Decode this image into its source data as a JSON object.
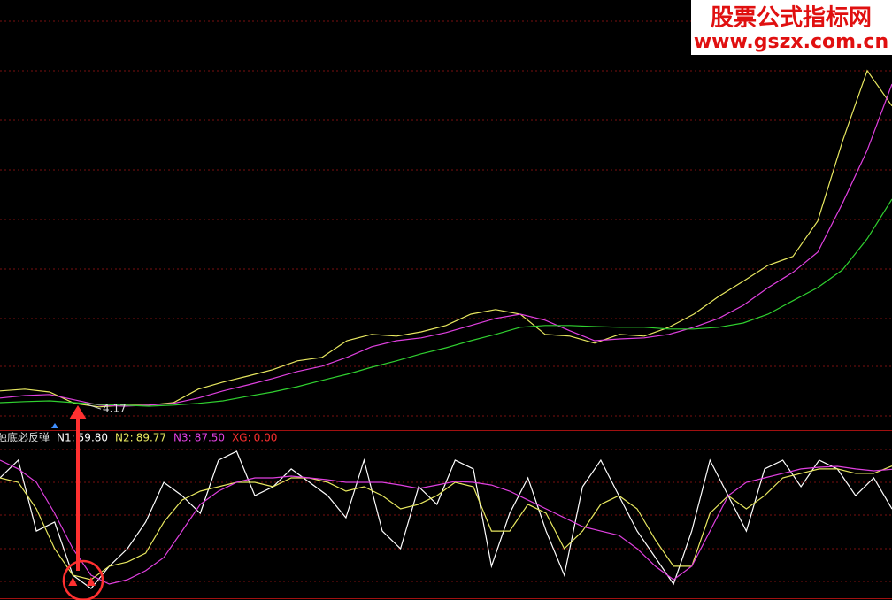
{
  "watermark": {
    "title": "股票公式指标网",
    "url": "www.gszx.com.cn"
  },
  "chart_data": [
    {
      "type": "line",
      "ylim": [
        3.6,
        15.725
      ],
      "low": 4.17,
      "series": [
        {
          "color": "#e8e860",
          "values": [
            4.68,
            4.73,
            4.65,
            4.33,
            4.23,
            4.28,
            4.28,
            4.35,
            4.73,
            4.93,
            5.1,
            5.28,
            5.53,
            5.63,
            6.1,
            6.28,
            6.23,
            6.35,
            6.53,
            6.85,
            6.98,
            6.85,
            6.28,
            6.23,
            6.03,
            6.28,
            6.23,
            6.48,
            6.85,
            7.35,
            7.78,
            8.23,
            8.48,
            9.48,
            11.73,
            13.73,
            12.73
          ]
        },
        {
          "color": "#e040e0",
          "values": [
            4.48,
            4.55,
            4.58,
            4.43,
            4.28,
            4.25,
            4.28,
            4.33,
            4.48,
            4.68,
            4.85,
            5.03,
            5.23,
            5.38,
            5.63,
            5.93,
            6.1,
            6.18,
            6.33,
            6.53,
            6.73,
            6.85,
            6.68,
            6.38,
            6.1,
            6.15,
            6.18,
            6.28,
            6.48,
            6.73,
            7.1,
            7.6,
            8.03,
            8.6,
            9.98,
            11.48,
            13.35
          ]
        },
        {
          "color": "#30d030",
          "values": [
            4.35,
            4.38,
            4.4,
            4.35,
            4.3,
            4.28,
            4.25,
            4.28,
            4.33,
            4.4,
            4.53,
            4.65,
            4.8,
            4.98,
            5.15,
            5.35,
            5.53,
            5.73,
            5.9,
            6.1,
            6.28,
            6.48,
            6.53,
            6.53,
            6.5,
            6.48,
            6.48,
            6.43,
            6.43,
            6.48,
            6.6,
            6.85,
            7.23,
            7.6,
            8.1,
            8.98,
            10.1
          ]
        }
      ]
    },
    {
      "type": "line",
      "title": "触底必反弹",
      "ylim": [
        0,
        100
      ],
      "series": [
        {
          "name": "N1:",
          "last_label": "59.80",
          "color": "#ffffff",
          "values": [
            81.5,
            93.8,
            44.4,
            50.6,
            13.6,
            4.3,
            19.8,
            32.1,
            50.6,
            78.4,
            69.1,
            56.8,
            93.8,
            100,
            69.1,
            75.3,
            87.7,
            78.4,
            69.1,
            53.7,
            93.8,
            44.4,
            32.1,
            75.3,
            63.0,
            93.8,
            87.7,
            19.8,
            56.8,
            81.5,
            44.4,
            13.6,
            75.3,
            93.8,
            69.1,
            44.4,
            25.9,
            7.4,
            44.4,
            93.8,
            69.1,
            44.4,
            87.7,
            93.8,
            75.3,
            93.8,
            87.7,
            69.1,
            81.5,
            59.8
          ]
        },
        {
          "name": "N2:",
          "last_label": "89.77",
          "color": "#e8e860",
          "values": [
            81.5,
            78.4,
            59.9,
            32.1,
            13.6,
            10.5,
            19.8,
            22.8,
            29.0,
            50.6,
            66.0,
            72.2,
            75.3,
            78.4,
            78.4,
            75.3,
            81.5,
            81.5,
            78.4,
            72.2,
            75.3,
            69.1,
            59.9,
            63.0,
            69.1,
            78.4,
            75.3,
            44.4,
            44.4,
            63.0,
            56.8,
            32.1,
            44.4,
            63.0,
            69.1,
            59.9,
            38.3,
            19.8,
            19.8,
            56.8,
            69.1,
            59.9,
            69.1,
            81.5,
            84.6,
            87.7,
            87.7,
            84.6,
            84.6,
            89.77
          ]
        },
        {
          "name": "N3:",
          "last_label": "87.50",
          "color": "#e040e0",
          "values": [
            93.8,
            87.7,
            78.4,
            56.8,
            32.1,
            13.6,
            7.4,
            10.5,
            16.7,
            25.9,
            44.4,
            63.0,
            72.2,
            78.4,
            81.5,
            81.5,
            82.7,
            81.5,
            80.2,
            78.4,
            78.4,
            78.4,
            76.5,
            74.1,
            76.5,
            79.0,
            78.4,
            76.5,
            72.2,
            66.0,
            59.9,
            53.7,
            47.5,
            44.4,
            41.4,
            32.1,
            19.8,
            10.5,
            19.8,
            44.4,
            69.1,
            78.4,
            81.5,
            84.6,
            87.7,
            88.9,
            89.5,
            87.7,
            86.4,
            87.5
          ]
        },
        {
          "name": "XG:",
          "last_label": "0.00",
          "color": "#ff3030",
          "signal": true,
          "values": [
            0,
            0,
            0,
            0,
            1,
            1,
            0,
            0,
            0,
            0,
            0,
            0,
            0,
            0,
            0,
            0,
            0,
            0,
            0,
            0,
            0,
            0,
            0,
            0,
            0,
            0,
            0,
            0,
            0,
            0,
            0,
            0,
            0,
            0,
            0,
            0,
            0,
            0,
            0,
            0,
            0,
            0,
            0,
            0,
            0,
            0,
            0,
            0,
            0,
            0
          ]
        }
      ]
    }
  ]
}
